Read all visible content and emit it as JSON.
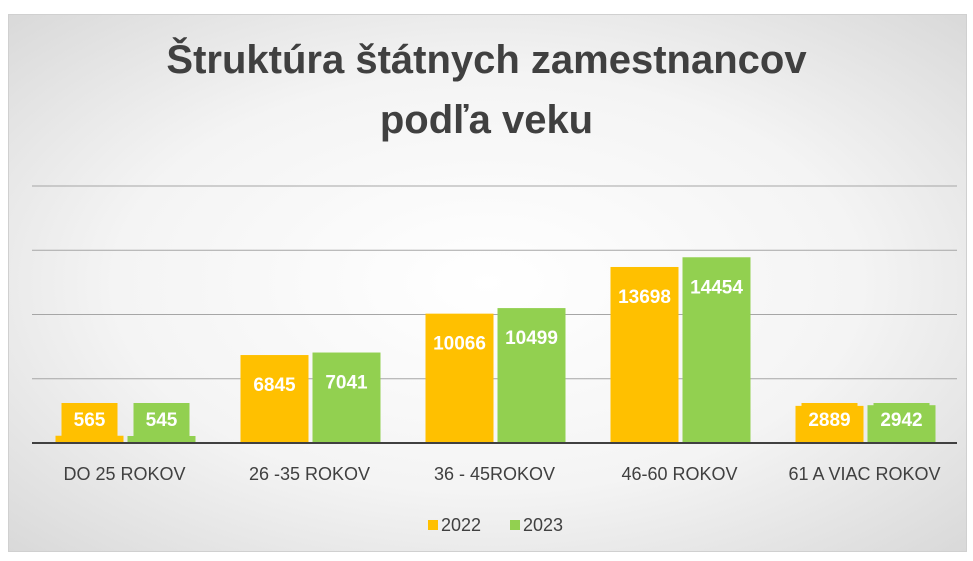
{
  "chart_data": {
    "type": "bar",
    "title": "Štruktúra štátnych zamestnancov podľa veku",
    "categories": [
      "DO 25 ROKOV",
      "26 -35 ROKOV",
      "36 - 45ROKOV",
      "46-60 ROKOV",
      "61 A VIAC ROKOV"
    ],
    "series": [
      {
        "name": "2022",
        "color": "#FFC000",
        "values": [
          565,
          6845,
          10066,
          13698,
          2889
        ]
      },
      {
        "name": "2023",
        "color": "#92D050",
        "values": [
          545,
          7041,
          10499,
          14454,
          2942
        ]
      }
    ],
    "ylim": [
      0,
      20000
    ],
    "yticks": [
      0,
      5000,
      10000,
      15000,
      20000
    ],
    "grid": true,
    "legend": "bottom"
  }
}
